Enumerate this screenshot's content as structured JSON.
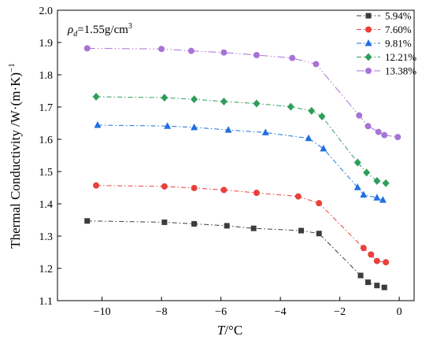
{
  "chart_data": {
    "type": "line",
    "title": "",
    "annotation": {
      "rho": "ρ",
      "sub": "d",
      "text": "=1.55g/cm",
      "sup": "3"
    },
    "xlabel": {
      "var": "T",
      "unit": "/°C"
    },
    "ylabel": {
      "main": "Thermal Conductivity /W·(m·K)",
      "sup": "−1"
    },
    "xlim": [
      -11.5,
      0.5
    ],
    "ylim": [
      1.1,
      2.0
    ],
    "xticks": [
      -10,
      -8,
      -6,
      -4,
      -2,
      0
    ],
    "xtick_labels": [
      "−10",
      "−8",
      "−6",
      "−4",
      "−2",
      "0"
    ],
    "yticks": [
      1.1,
      1.2,
      1.3,
      1.4,
      1.5,
      1.6,
      1.7,
      1.8,
      1.9,
      2.0
    ],
    "ytick_labels": [
      "1.1",
      "1.2",
      "1.3",
      "1.4",
      "1.5",
      "1.6",
      "1.7",
      "1.8",
      "1.9",
      "2.0"
    ],
    "grid": false,
    "legend_position": "top-right",
    "series": [
      {
        "name": "5.94%",
        "color": "#3c3c3c",
        "marker": "square",
        "dash": "6 3 1.5 3",
        "x": [
          -10.5,
          -7.9,
          -6.9,
          -5.8,
          -4.9,
          -3.3,
          -2.7,
          -1.3,
          -1.05,
          -0.75,
          -0.5
        ],
        "y": [
          1.347,
          1.343,
          1.338,
          1.332,
          1.324,
          1.317,
          1.308,
          1.178,
          1.157,
          1.147,
          1.141
        ]
      },
      {
        "name": "7.60%",
        "color": "#e8413c",
        "marker": "circle",
        "dash": "6 3 1.5 3",
        "x": [
          -10.2,
          -7.9,
          -6.9,
          -5.9,
          -4.8,
          -3.4,
          -2.7,
          -1.2,
          -0.95,
          -0.75,
          -0.45
        ],
        "y": [
          1.457,
          1.454,
          1.449,
          1.443,
          1.434,
          1.423,
          1.402,
          1.263,
          1.243,
          1.223,
          1.219
        ]
      },
      {
        "name": "9.81%",
        "color": "#1f6fe0",
        "marker": "triangle",
        "dash": "6 3 1.5 3",
        "x": [
          -10.15,
          -7.8,
          -6.9,
          -5.75,
          -4.5,
          -3.05,
          -2.55,
          -1.4,
          -1.2,
          -0.75,
          -0.55
        ],
        "y": [
          1.644,
          1.641,
          1.637,
          1.629,
          1.621,
          1.603,
          1.571,
          1.451,
          1.428,
          1.419,
          1.412
        ]
      },
      {
        "name": "12.21%",
        "color": "#2f9e5a",
        "marker": "diamond",
        "dash": "6 3 1.5 3",
        "x": [
          -10.2,
          -7.9,
          -6.9,
          -5.9,
          -4.8,
          -3.65,
          -2.95,
          -2.6,
          -1.4,
          -1.1,
          -0.75,
          -0.45
        ],
        "y": [
          1.732,
          1.729,
          1.724,
          1.717,
          1.711,
          1.701,
          1.688,
          1.671,
          1.528,
          1.497,
          1.471,
          1.464
        ]
      },
      {
        "name": "13.38%",
        "color": "#a873d6",
        "marker": "circle",
        "dash": "10 3 1.5 3 1.5 3",
        "x": [
          -10.5,
          -8.0,
          -7.0,
          -5.9,
          -4.8,
          -3.6,
          -2.8,
          -1.35,
          -1.05,
          -0.7,
          -0.5,
          -0.05
        ],
        "y": [
          1.882,
          1.88,
          1.874,
          1.869,
          1.861,
          1.852,
          1.833,
          1.674,
          1.641,
          1.623,
          1.613,
          1.607
        ]
      }
    ]
  }
}
